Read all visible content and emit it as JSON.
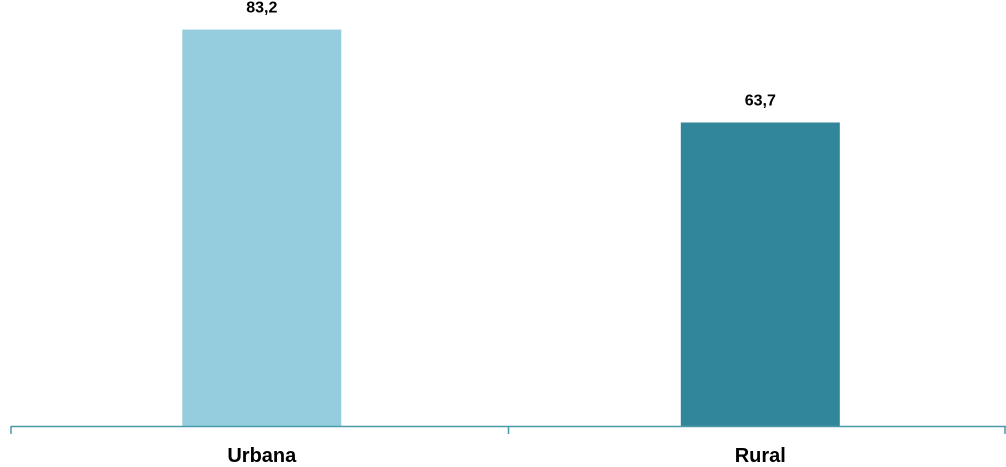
{
  "chart_data": {
    "type": "bar",
    "categories": [
      "Urbana",
      "Rural"
    ],
    "values": [
      83.2,
      63.7
    ],
    "value_labels": [
      "83,2",
      "63,7"
    ],
    "bar_colors": [
      "#96CDDE",
      "#32869B"
    ],
    "axis_color": "#4A9BAA",
    "ylim": [
      0,
      100
    ],
    "grid": false,
    "legend": "none",
    "title": "",
    "xlabel": "",
    "ylabel": ""
  }
}
